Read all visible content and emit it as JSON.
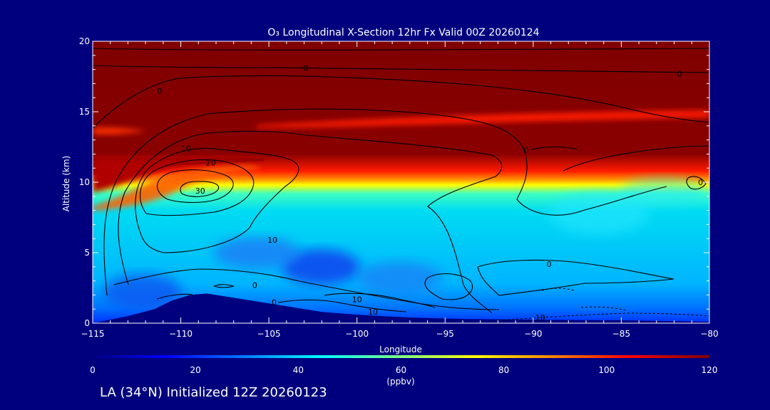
{
  "chart_data": {
    "type": "heatmap",
    "title": "O₃ Longitudinal X-Section 12hr  Fx Valid 00Z 20260124",
    "xlabel": "Longitude",
    "ylabel": "Altitude (km)",
    "xlim": [
      -115,
      -80
    ],
    "ylim": [
      0,
      20
    ],
    "x_ticks": [
      -115,
      -110,
      -105,
      -100,
      -95,
      -90,
      -85,
      -80
    ],
    "x_tick_labels": [
      "−115",
      "−110",
      "−105",
      "−100",
      "−95",
      "−90",
      "−85",
      "−80"
    ],
    "y_ticks": [
      0,
      5,
      10,
      15,
      20
    ],
    "y_tick_labels": [
      "0",
      "5",
      "10",
      "15",
      "20"
    ],
    "colorbar": {
      "min": 0,
      "max": 120,
      "ticks": [
        0,
        20,
        40,
        60,
        80,
        100,
        120
      ],
      "tick_labels": [
        "0",
        "20",
        "40",
        "60",
        "80",
        "100",
        "120"
      ],
      "unit": "(ppbv)",
      "colors": [
        "#00007f",
        "#0000ff",
        "#0080ff",
        "#00ffff",
        "#80ff80",
        "#ffff00",
        "#ff8000",
        "#ff0000",
        "#7f0000"
      ]
    },
    "terrain": [
      {
        "lon": -115,
        "alt": 0.0
      },
      {
        "lon": -113,
        "alt": 0.5
      },
      {
        "lon": -111.5,
        "alt": 1.0
      },
      {
        "lon": -110.5,
        "alt": 1.6
      },
      {
        "lon": -109.5,
        "alt": 2.0
      },
      {
        "lon": -108.5,
        "alt": 2.1
      },
      {
        "lon": -107.5,
        "alt": 1.9
      },
      {
        "lon": -106,
        "alt": 1.6
      },
      {
        "lon": -104,
        "alt": 1.2
      },
      {
        "lon": -102,
        "alt": 0.8
      },
      {
        "lon": -100,
        "alt": 0.6
      },
      {
        "lon": -97,
        "alt": 0.4
      },
      {
        "lon": -94,
        "alt": 0.3
      },
      {
        "lon": -90,
        "alt": 0.25
      },
      {
        "lon": -85,
        "alt": 0.2
      },
      {
        "lon": -80,
        "alt": 0.1
      }
    ],
    "contour_labels": [
      {
        "text": "0",
        "lon": -102.9,
        "alt": 18.1
      },
      {
        "text": "0",
        "lon": -81.7,
        "alt": 17.7
      },
      {
        "text": "0",
        "lon": -111.2,
        "alt": 16.5
      },
      {
        "text": "10",
        "lon": -109.7,
        "alt": 12.4
      },
      {
        "text": "0",
        "lon": -90.4,
        "alt": 12.3
      },
      {
        "text": "20",
        "lon": -108.3,
        "alt": 11.4
      },
      {
        "text": "30",
        "lon": -108.9,
        "alt": 9.4
      },
      {
        "text": "0",
        "lon": -80.5,
        "alt": 10.0
      },
      {
        "text": "10",
        "lon": -104.8,
        "alt": 5.9
      },
      {
        "text": "0",
        "lon": -89.1,
        "alt": 4.2
      },
      {
        "text": "0",
        "lon": -105.8,
        "alt": 2.7
      },
      {
        "text": "10",
        "lon": -100.0,
        "alt": 1.7
      },
      {
        "text": "0",
        "lon": -104.7,
        "alt": 1.5
      },
      {
        "text": "10",
        "lon": -99.1,
        "alt": 0.8
      },
      {
        "text": "10",
        "lon": -89.6,
        "alt": 0.4
      }
    ]
  },
  "footer": {
    "text": "LA (34°N) Initialized 12Z 20260123"
  }
}
